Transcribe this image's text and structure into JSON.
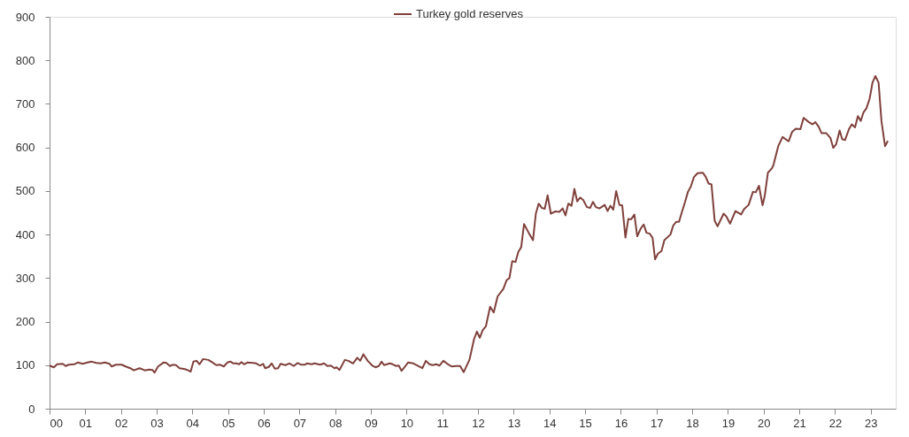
{
  "chart_data": {
    "type": "line",
    "legend": "top",
    "marker": "none",
    "line_style": "solid",
    "grid": false,
    "xlim": [
      2000,
      2023.7
    ],
    "ylim": [
      0,
      900
    ],
    "xticks": [
      {
        "value": 2000,
        "label": "00"
      },
      {
        "value": 2001,
        "label": "01"
      },
      {
        "value": 2002,
        "label": "02"
      },
      {
        "value": 2003,
        "label": "03"
      },
      {
        "value": 2004,
        "label": "04"
      },
      {
        "value": 2005,
        "label": "05"
      },
      {
        "value": 2006,
        "label": "06"
      },
      {
        "value": 2007,
        "label": "07"
      },
      {
        "value": 2008,
        "label": "08"
      },
      {
        "value": 2009,
        "label": "09"
      },
      {
        "value": 2010,
        "label": "10"
      },
      {
        "value": 2011,
        "label": "11"
      },
      {
        "value": 2012,
        "label": "12"
      },
      {
        "value": 2013,
        "label": "13"
      },
      {
        "value": 2014,
        "label": "14"
      },
      {
        "value": 2015,
        "label": "15"
      },
      {
        "value": 2016,
        "label": "16"
      },
      {
        "value": 2017,
        "label": "17"
      },
      {
        "value": 2018,
        "label": "18"
      },
      {
        "value": 2019,
        "label": "19"
      },
      {
        "value": 2020,
        "label": "20"
      },
      {
        "value": 2021,
        "label": "21"
      },
      {
        "value": 2022,
        "label": "22"
      },
      {
        "value": 2023,
        "label": "23"
      }
    ],
    "yticks": [
      0,
      100,
      200,
      300,
      400,
      500,
      600,
      700,
      800,
      900
    ],
    "series": [
      {
        "name": "Turkey gold reserves",
        "color": "#7f403b",
        "x": [
          2000.0,
          2000.12,
          2000.21,
          2000.37,
          2000.45,
          2000.54,
          2000.69,
          2000.79,
          2000.93,
          2001.06,
          2001.18,
          2001.31,
          2001.43,
          2001.55,
          2001.68,
          2001.74,
          2001.86,
          2002.02,
          2002.13,
          2002.26,
          2002.36,
          2002.52,
          2002.67,
          2002.79,
          2002.88,
          2002.94,
          2003.04,
          2003.19,
          2003.27,
          2003.37,
          2003.45,
          2003.54,
          2003.64,
          2003.79,
          2003.88,
          2003.95,
          2004.03,
          2004.12,
          2004.2,
          2004.3,
          2004.45,
          2004.57,
          2004.67,
          2004.78,
          2004.88,
          2004.98,
          2005.07,
          2005.15,
          2005.23,
          2005.31,
          2005.37,
          2005.45,
          2005.54,
          2005.69,
          2005.79,
          2005.89,
          2005.98,
          2006.04,
          2006.14,
          2006.22,
          2006.31,
          2006.4,
          2006.47,
          2006.6,
          2006.72,
          2006.84,
          2006.95,
          2007.05,
          2007.15,
          2007.21,
          2007.34,
          2007.42,
          2007.58,
          2007.69,
          2007.78,
          2007.88,
          2007.98,
          2008.04,
          2008.12,
          2008.27,
          2008.37,
          2008.5,
          2008.62,
          2008.7,
          2008.79,
          2008.91,
          2009.04,
          2009.13,
          2009.22,
          2009.3,
          2009.37,
          2009.53,
          2009.61,
          2009.71,
          2009.78,
          2009.86,
          2009.94,
          2010.04,
          2010.19,
          2010.31,
          2010.44,
          2010.54,
          2010.64,
          2010.73,
          2010.83,
          2010.92,
          2011.03,
          2011.14,
          2011.26,
          2011.39,
          2011.5,
          2011.6,
          2011.76,
          2011.89,
          2011.97,
          2012.05,
          2012.13,
          2012.22,
          2012.34,
          2012.44,
          2012.55,
          2012.71,
          2012.8,
          2012.88,
          2012.96,
          2013.05,
          2013.13,
          2013.21,
          2013.29,
          2013.42,
          2013.54,
          2013.62,
          2013.7,
          2013.79,
          2013.87,
          2013.95,
          2014.04,
          2014.16,
          2014.28,
          2014.37,
          2014.45,
          2014.53,
          2014.62,
          2014.7,
          2014.78,
          2014.86,
          2014.95,
          2015.05,
          2015.14,
          2015.22,
          2015.3,
          2015.4,
          2015.55,
          2015.63,
          2015.71,
          2015.79,
          2015.87,
          2015.96,
          2016.04,
          2016.13,
          2016.21,
          2016.29,
          2016.38,
          2016.46,
          2016.56,
          2016.64,
          2016.72,
          2016.81,
          2016.89,
          2016.96,
          2017.04,
          2017.14,
          2017.22,
          2017.39,
          2017.47,
          2017.55,
          2017.63,
          2017.72,
          2017.8,
          2017.88,
          2017.96,
          2018.05,
          2018.15,
          2018.3,
          2018.38,
          2018.46,
          2018.54,
          2018.63,
          2018.71,
          2018.88,
          2018.96,
          2019.06,
          2019.21,
          2019.37,
          2019.45,
          2019.58,
          2019.7,
          2019.78,
          2019.87,
          2019.97,
          2020.03,
          2020.12,
          2020.24,
          2020.28,
          2020.41,
          2020.53,
          2020.7,
          2020.8,
          2020.9,
          2021.03,
          2021.12,
          2021.27,
          2021.37,
          2021.45,
          2021.54,
          2021.62,
          2021.75,
          2021.87,
          2021.95,
          2022.03,
          2022.13,
          2022.2,
          2022.28,
          2022.39,
          2022.47,
          2022.56,
          2022.64,
          2022.72,
          2022.8,
          2022.88,
          2022.97,
          2023.05,
          2023.13,
          2023.22,
          2023.3,
          2023.4,
          2023.48
        ],
        "values": [
          99,
          95,
          102,
          103,
          98,
          101,
          102,
          106,
          103,
          106,
          108,
          105,
          104,
          106,
          103,
          97,
          101,
          101,
          97,
          93,
          88,
          93,
          88,
          90,
          89,
          83,
          97,
          106,
          105,
          98,
          101,
          100,
          93,
          91,
          88,
          85,
          108,
          110,
          102,
          114,
          112,
          106,
          100,
          101,
          97,
          106,
          108,
          104,
          104,
          102,
          107,
          102,
          106,
          105,
          104,
          99,
          103,
          93,
          96,
          104,
          92,
          93,
          103,
          100,
          104,
          98,
          105,
          101,
          101,
          104,
          102,
          104,
          101,
          104,
          98,
          99,
          93,
          95,
          89,
          112,
          110,
          104,
          117,
          110,
          125,
          110,
          99,
          95,
          98,
          108,
          100,
          104,
          102,
          98,
          99,
          87,
          95,
          106,
          104,
          99,
          93,
          110,
          102,
          100,
          102,
          99,
          110,
          103,
          97,
          98,
          98,
          84,
          112,
          160,
          177,
          163,
          180,
          189,
          234,
          221,
          258,
          275,
          295,
          300,
          339,
          337,
          360,
          371,
          424,
          404,
          387,
          448,
          471,
          461,
          459,
          490,
          448,
          453,
          452,
          460,
          444,
          471,
          466,
          505,
          476,
          485,
          479,
          463,
          461,
          475,
          463,
          460,
          468,
          454,
          466,
          457,
          500,
          468,
          467,
          393,
          436,
          435,
          446,
          396,
          414,
          423,
          404,
          402,
          392,
          343,
          356,
          362,
          387,
          400,
          421,
          429,
          429,
          454,
          475,
          498,
          510,
          532,
          541,
          542,
          532,
          517,
          515,
          431,
          419,
          448,
          441,
          425,
          454,
          446,
          458,
          468,
          498,
          497,
          512,
          467,
          488,
          542,
          553,
          561,
          603,
          624,
          614,
          636,
          643,
          642,
          668,
          658,
          653,
          658,
          648,
          633,
          633,
          622,
          599,
          607,
          639,
          619,
          617,
          642,
          653,
          646,
          672,
          661,
          681,
          690,
          712,
          749,
          764,
          749,
          661,
          603,
          615
        ]
      }
    ]
  }
}
